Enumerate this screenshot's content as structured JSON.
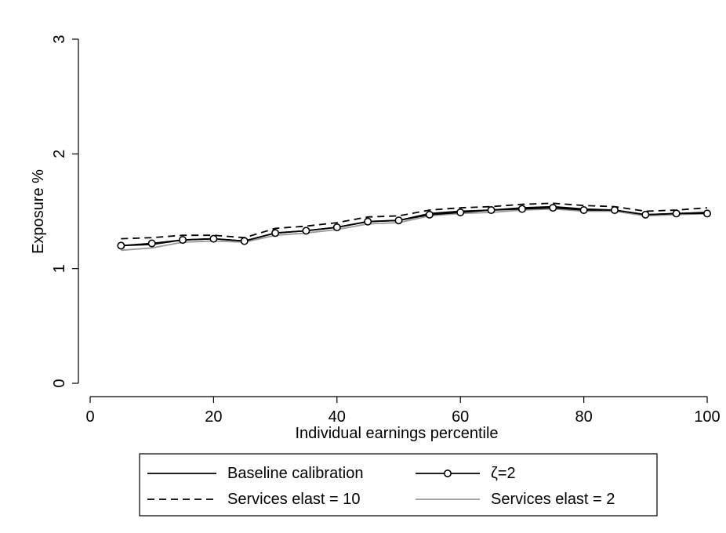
{
  "chart_data": {
    "type": "line",
    "xlabel": "Individual earnings percentile",
    "ylabel": "Exposure %",
    "xlim": [
      0,
      100
    ],
    "ylim": [
      0,
      3
    ],
    "xticks": [
      0,
      20,
      40,
      60,
      80,
      100
    ],
    "yticks": [
      0,
      1,
      2,
      3
    ],
    "grid": false,
    "legend_placement": "bottom",
    "x": [
      5,
      10,
      15,
      20,
      25,
      30,
      35,
      40,
      45,
      50,
      55,
      60,
      65,
      70,
      75,
      80,
      85,
      90,
      95,
      100
    ],
    "series": [
      {
        "name": "Baseline calibration",
        "style": "solid",
        "color": "#000000",
        "markers": false,
        "values": [
          1.2,
          1.21,
          1.25,
          1.26,
          1.24,
          1.31,
          1.33,
          1.36,
          1.41,
          1.42,
          1.48,
          1.5,
          1.51,
          1.53,
          1.54,
          1.52,
          1.51,
          1.47,
          1.48,
          1.49
        ]
      },
      {
        "name": "ζ=2",
        "style": "solid",
        "color": "#000000",
        "markers": true,
        "values": [
          1.2,
          1.22,
          1.25,
          1.26,
          1.24,
          1.31,
          1.33,
          1.36,
          1.41,
          1.42,
          1.47,
          1.49,
          1.51,
          1.52,
          1.53,
          1.51,
          1.51,
          1.47,
          1.48,
          1.48
        ]
      },
      {
        "name": "Services elast = 10",
        "style": "dashed",
        "color": "#000000",
        "markers": false,
        "values": [
          1.26,
          1.27,
          1.29,
          1.29,
          1.27,
          1.35,
          1.37,
          1.4,
          1.45,
          1.46,
          1.51,
          1.53,
          1.54,
          1.56,
          1.57,
          1.55,
          1.54,
          1.5,
          1.51,
          1.53
        ]
      },
      {
        "name": "Services elast = 2",
        "style": "solid",
        "color": "#999999",
        "markers": false,
        "values": [
          1.16,
          1.18,
          1.23,
          1.24,
          1.23,
          1.29,
          1.31,
          1.34,
          1.39,
          1.4,
          1.46,
          1.48,
          1.49,
          1.51,
          1.52,
          1.5,
          1.5,
          1.46,
          1.47,
          1.48
        ]
      }
    ]
  }
}
